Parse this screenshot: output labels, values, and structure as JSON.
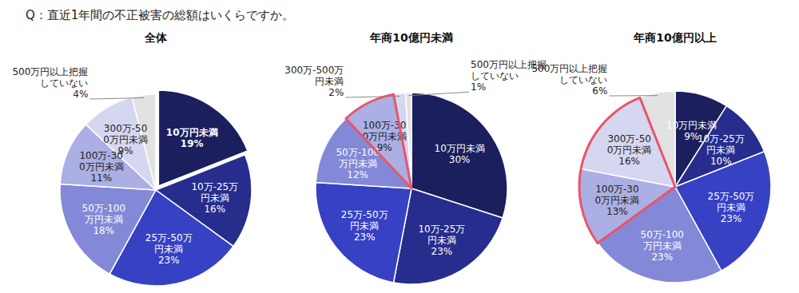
{
  "title": "Q：直近1年間の不正被害の総額はいくらですか。",
  "chart_data": [
    {
      "type": "pie",
      "title": "全体",
      "categories": [
        "10万円未満",
        "10万-25万円未満",
        "25万-50万円未満",
        "50万-100万円未満",
        "100万-300万円未満",
        "300万-500万円未満",
        "500万円以上把握していない"
      ],
      "values": [
        19,
        16,
        23,
        18,
        11,
        9,
        4
      ],
      "value_labels": [
        "19%",
        "16%",
        "23%",
        "18%",
        "11%",
        "9%",
        "4%"
      ],
      "colors": [
        "#1b1f5e",
        "#262d8c",
        "#3641c4",
        "#8389d6",
        "#abafe3",
        "#d5d7f1",
        "#e2e2e2"
      ],
      "data_labels": true
    },
    {
      "type": "pie",
      "title": "年商10億円未満",
      "categories": [
        "10万円未満",
        "10万-25万円未満",
        "25万-50万円未満",
        "50万-100万円未満",
        "100万-300万円未満",
        "300万-500万円未満",
        "500万円以上把握していない"
      ],
      "values": [
        30,
        23,
        23,
        12,
        9,
        2,
        1
      ],
      "value_labels": [
        "30%",
        "23%",
        "23%",
        "12%",
        "9%",
        "2%",
        "1%"
      ],
      "colors": [
        "#1b1f5e",
        "#262d8c",
        "#3641c4",
        "#8389d6",
        "#abafe3",
        "#d5d7f1",
        "#e2e2e2"
      ],
      "data_labels": true
    },
    {
      "type": "pie",
      "title": "年商10億円以上",
      "categories": [
        "10万円未満",
        "10万-25万円未満",
        "25万-50万円未満",
        "50万-100万円未満",
        "100万-300万円未満",
        "300万-500万円未満",
        "500万円以上把握していない"
      ],
      "values": [
        9,
        10,
        23,
        23,
        13,
        16,
        6
      ],
      "value_labels": [
        "9%",
        "10%",
        "23%",
        "23%",
        "13%",
        "16%",
        "6%"
      ],
      "colors": [
        "#1b1f5e",
        "#262d8c",
        "#3641c4",
        "#8389d6",
        "#abafe3",
        "#d5d7f1",
        "#e2e2e2"
      ],
      "data_labels": true
    }
  ]
}
